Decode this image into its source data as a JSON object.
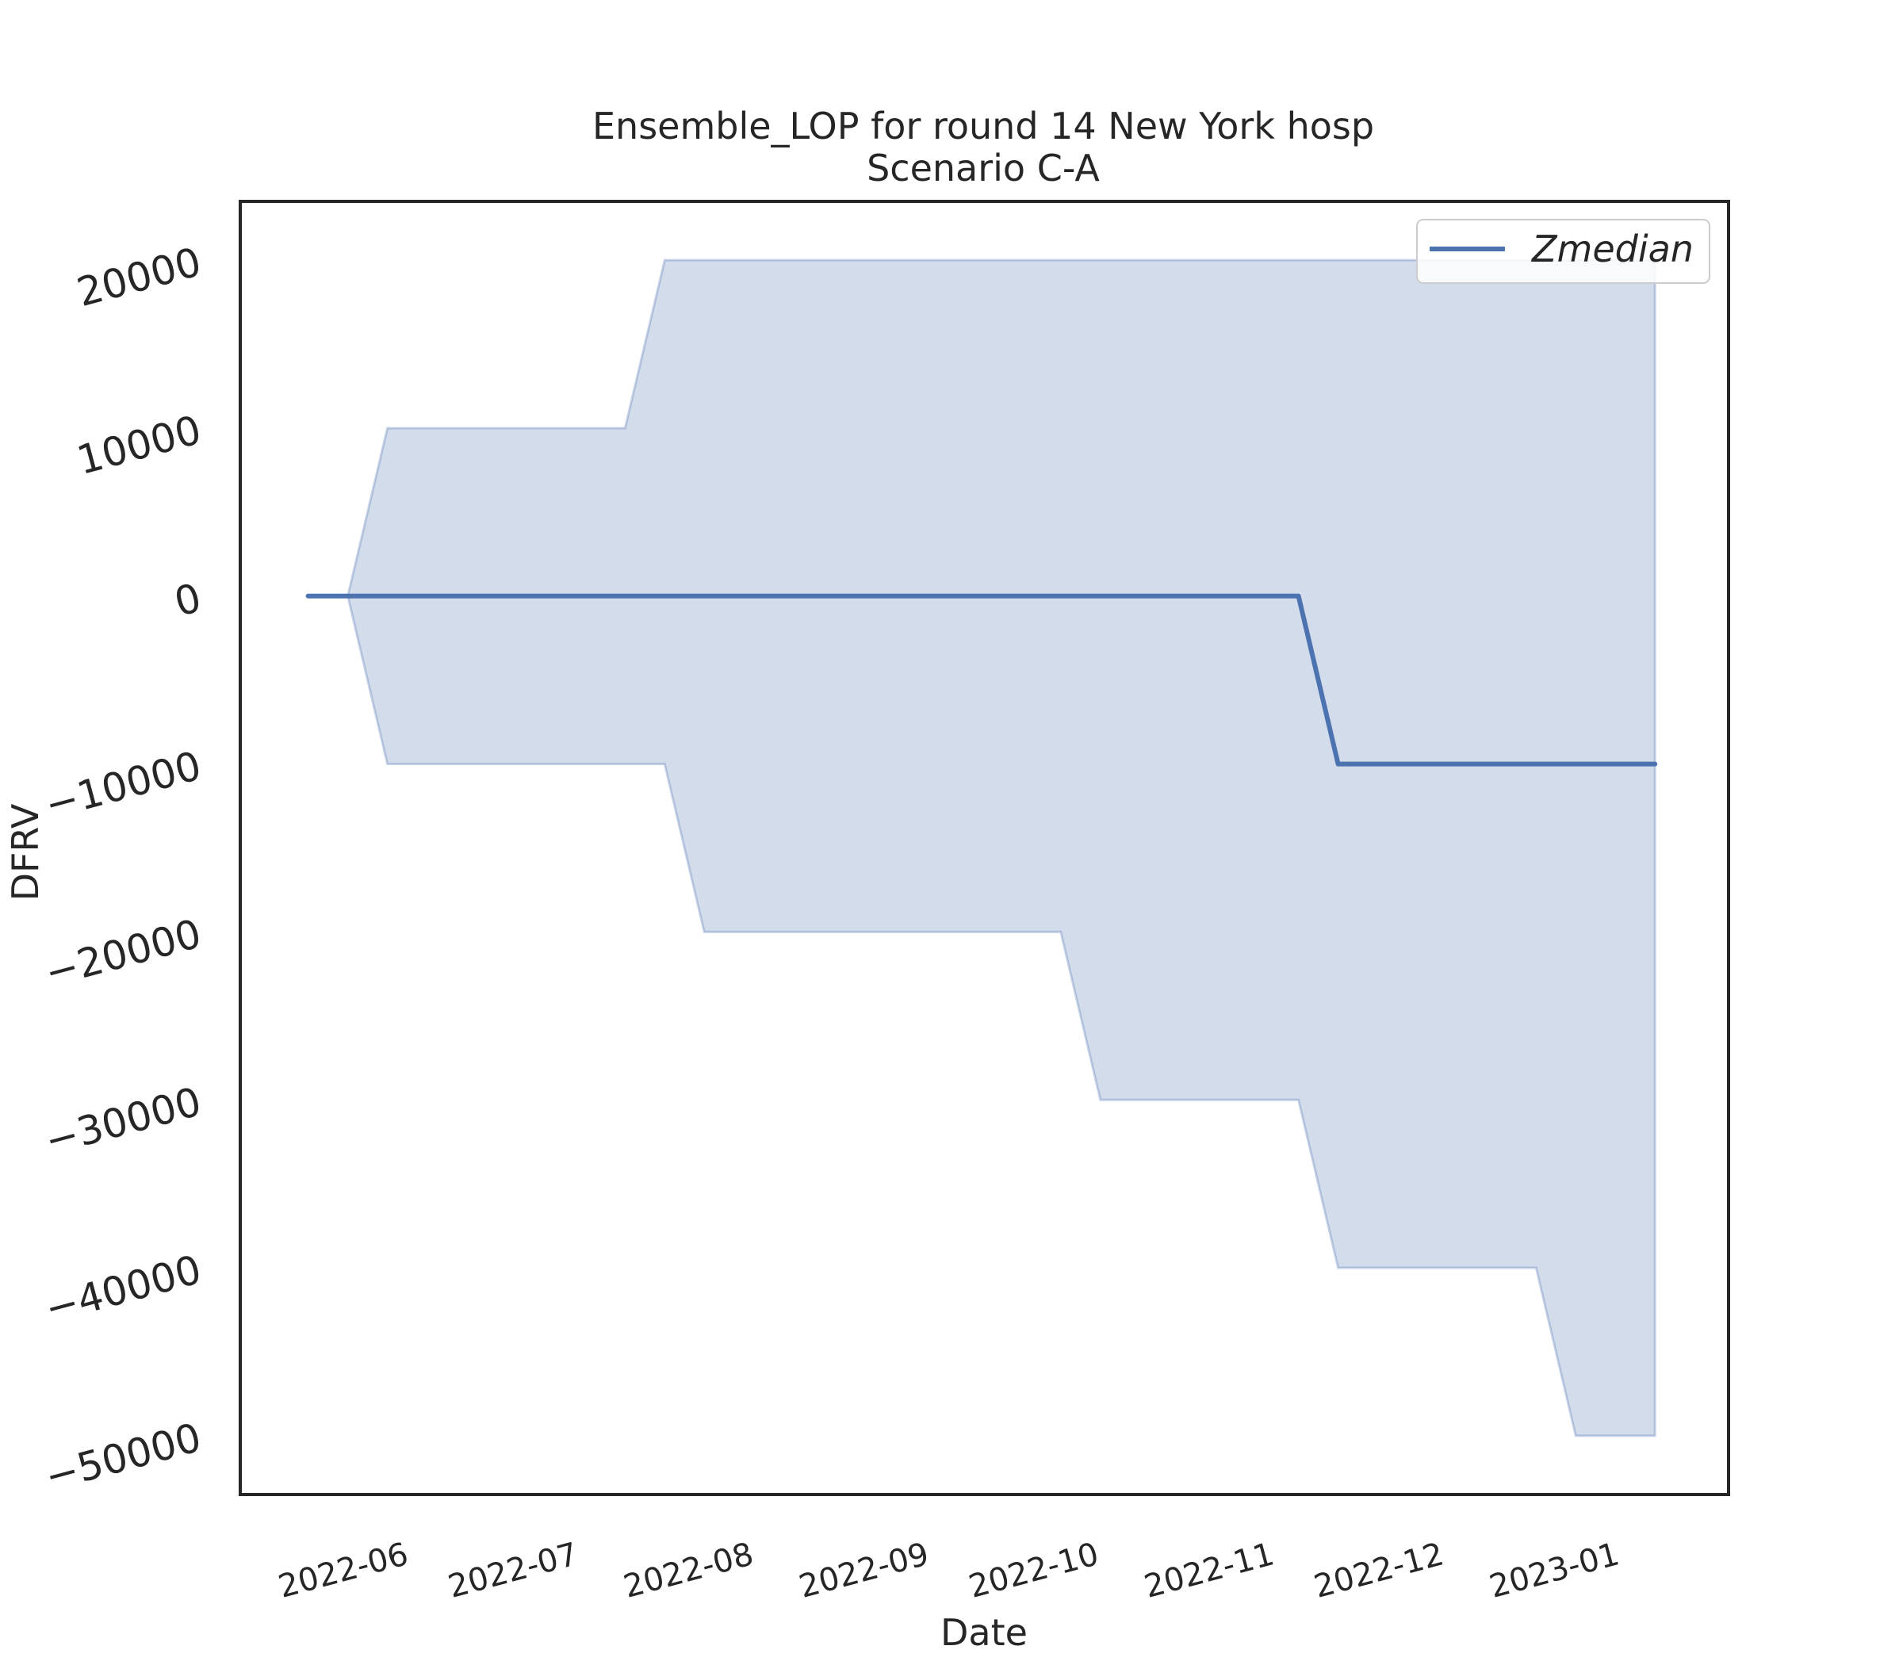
{
  "chart_data": {
    "type": "line",
    "title": "Ensemble_LOP for round 14 New York hosp",
    "subtitle": "Scenario C-A",
    "xlabel": "Date",
    "ylabel": "DFRV",
    "x_tick_labels": [
      "2022-06",
      "2022-07",
      "2022-08",
      "2022-09",
      "2022-10",
      "2022-11",
      "2022-12",
      "2023-01"
    ],
    "x_ticks": [
      "2022-06-01",
      "2022-07-01",
      "2022-08-01",
      "2022-09-01",
      "2022-10-01",
      "2022-11-01",
      "2022-12-01",
      "2023-01-01"
    ],
    "x_range": [
      "2022-05-02",
      "2023-01-20"
    ],
    "ylim": [
      -53500,
      23500
    ],
    "y_ticks": [
      -50000,
      -40000,
      -30000,
      -20000,
      -10000,
      0,
      10000,
      20000
    ],
    "y_tick_labels": [
      "−50000",
      "−40000",
      "−30000",
      "−20000",
      "−10000",
      "0",
      "10000",
      "20000"
    ],
    "grid": false,
    "legend": {
      "position": "top-right",
      "entries": [
        "Zmedian"
      ]
    },
    "series": [
      {
        "name": "Zmedian",
        "color": "#4c72b0",
        "x": [
          "2022-05-14",
          "2022-05-21",
          "2022-05-28",
          "2022-06-04",
          "2022-06-11",
          "2022-06-18",
          "2022-06-25",
          "2022-07-02",
          "2022-07-09",
          "2022-07-16",
          "2022-07-23",
          "2022-07-30",
          "2022-08-06",
          "2022-08-13",
          "2022-08-20",
          "2022-08-27",
          "2022-09-03",
          "2022-09-10",
          "2022-09-17",
          "2022-09-24",
          "2022-10-01",
          "2022-10-08",
          "2022-10-15",
          "2022-10-22",
          "2022-10-29",
          "2022-11-05",
          "2022-11-12",
          "2022-11-19",
          "2022-11-26",
          "2022-12-03",
          "2022-12-10",
          "2022-12-17",
          "2022-12-24",
          "2022-12-31",
          "2023-01-07"
        ],
        "values": [
          0,
          0,
          0,
          0,
          0,
          0,
          0,
          0,
          0,
          0,
          0,
          0,
          0,
          0,
          0,
          0,
          0,
          0,
          0,
          0,
          0,
          0,
          0,
          0,
          0,
          0,
          -10000,
          -10000,
          -10000,
          -10000,
          -10000,
          -10000,
          -10000,
          -10000,
          -10000
        ]
      }
    ],
    "band": {
      "color": "#4c72b0",
      "opacity": 0.25,
      "x": [
        "2022-05-14",
        "2022-05-21",
        "2022-05-28",
        "2022-06-04",
        "2022-06-11",
        "2022-06-18",
        "2022-06-25",
        "2022-07-02",
        "2022-07-09",
        "2022-07-16",
        "2022-07-23",
        "2022-07-30",
        "2022-08-06",
        "2022-08-13",
        "2022-08-20",
        "2022-08-27",
        "2022-09-03",
        "2022-09-10",
        "2022-09-17",
        "2022-09-24",
        "2022-10-01",
        "2022-10-08",
        "2022-10-15",
        "2022-10-22",
        "2022-10-29",
        "2022-11-05",
        "2022-11-12",
        "2022-11-19",
        "2022-11-26",
        "2022-12-03",
        "2022-12-10",
        "2022-12-17",
        "2022-12-24",
        "2022-12-31",
        "2023-01-07"
      ],
      "upper": [
        0,
        0,
        10000,
        10000,
        10000,
        10000,
        10000,
        10000,
        10000,
        20000,
        20000,
        20000,
        20000,
        20000,
        20000,
        20000,
        20000,
        20000,
        20000,
        20000,
        20000,
        20000,
        20000,
        20000,
        20000,
        20000,
        20000,
        20000,
        20000,
        20000,
        20000,
        20000,
        20000,
        20000,
        20000
      ],
      "lower": [
        0,
        0,
        -10000,
        -10000,
        -10000,
        -10000,
        -10000,
        -10000,
        -10000,
        -10000,
        -20000,
        -20000,
        -20000,
        -20000,
        -20000,
        -20000,
        -20000,
        -20000,
        -20000,
        -20000,
        -30000,
        -30000,
        -30000,
        -30000,
        -30000,
        -30000,
        -40000,
        -40000,
        -40000,
        -40000,
        -40000,
        -40000,
        -50000,
        -50000,
        -50000
      ]
    }
  }
}
